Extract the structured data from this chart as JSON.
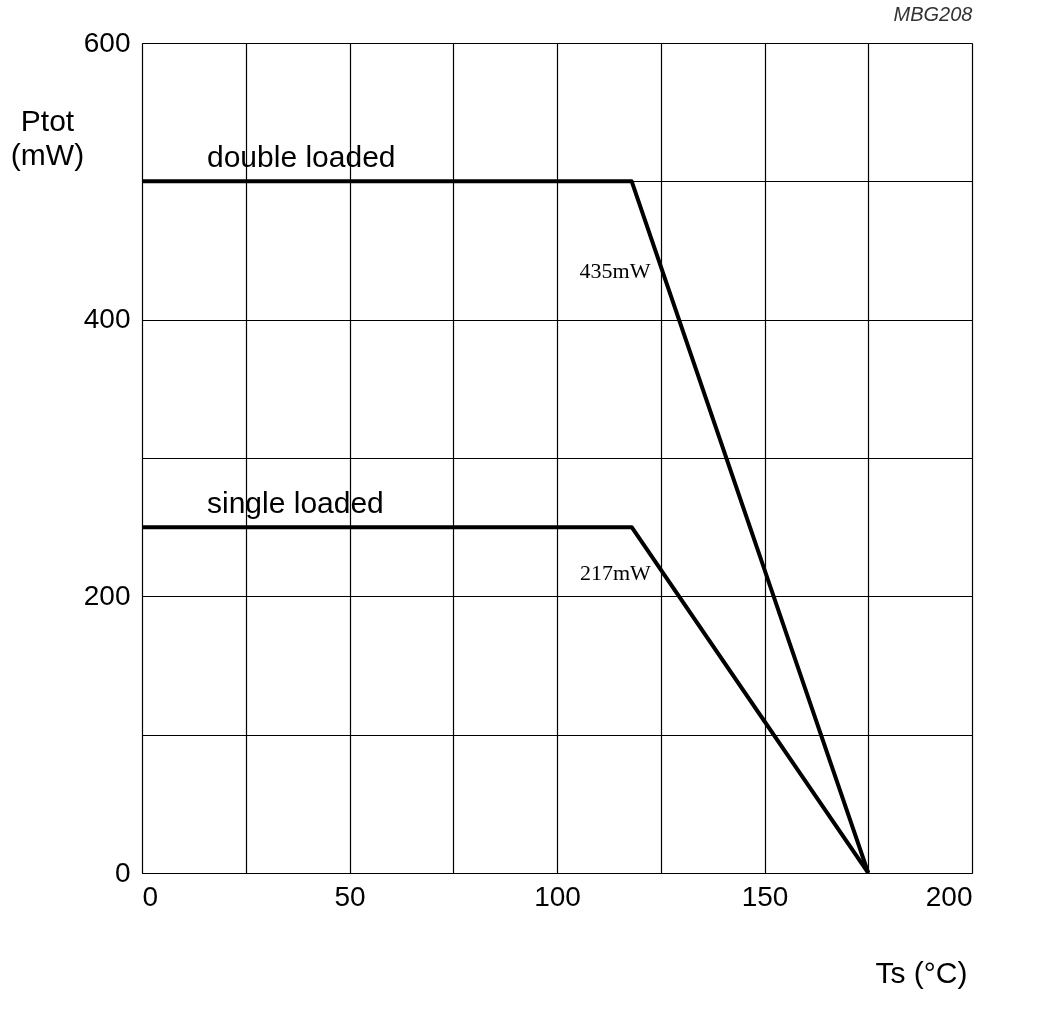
{
  "chart_data": {
    "type": "line",
    "x": [
      0,
      118,
      175
    ],
    "series": [
      {
        "name": "double loaded",
        "color": "#000000",
        "values": [
          500,
          500,
          0
        ]
      },
      {
        "name": "single loaded",
        "color": "#000000",
        "values": [
          250,
          250,
          0
        ]
      }
    ],
    "xlabel": "Ts (°C)",
    "ylabel": "Ptot (mW)",
    "xlim": [
      0,
      200
    ],
    "ylim": [
      0,
      600
    ],
    "xticks": [
      0,
      {
        "value": 25,
        "label": null
      },
      50,
      {
        "value": 75,
        "label": null
      },
      100,
      {
        "value": 125,
        "label": null
      },
      150,
      {
        "value": 175,
        "label": null
      },
      200
    ],
    "yticks": [
      0,
      {
        "value": 100,
        "label": null
      },
      200,
      {
        "value": 300,
        "label": null
      },
      400,
      {
        "value": 500,
        "label": null
      },
      600
    ],
    "grid": true,
    "legend": false,
    "marker": "none",
    "line_style": "solid",
    "annotations": [
      "MBG208",
      {
        "text": "435mW",
        "x": 125.4,
        "y": 435
      },
      {
        "text": "217mW",
        "x": 125.5,
        "y": 217
      }
    ]
  }
}
